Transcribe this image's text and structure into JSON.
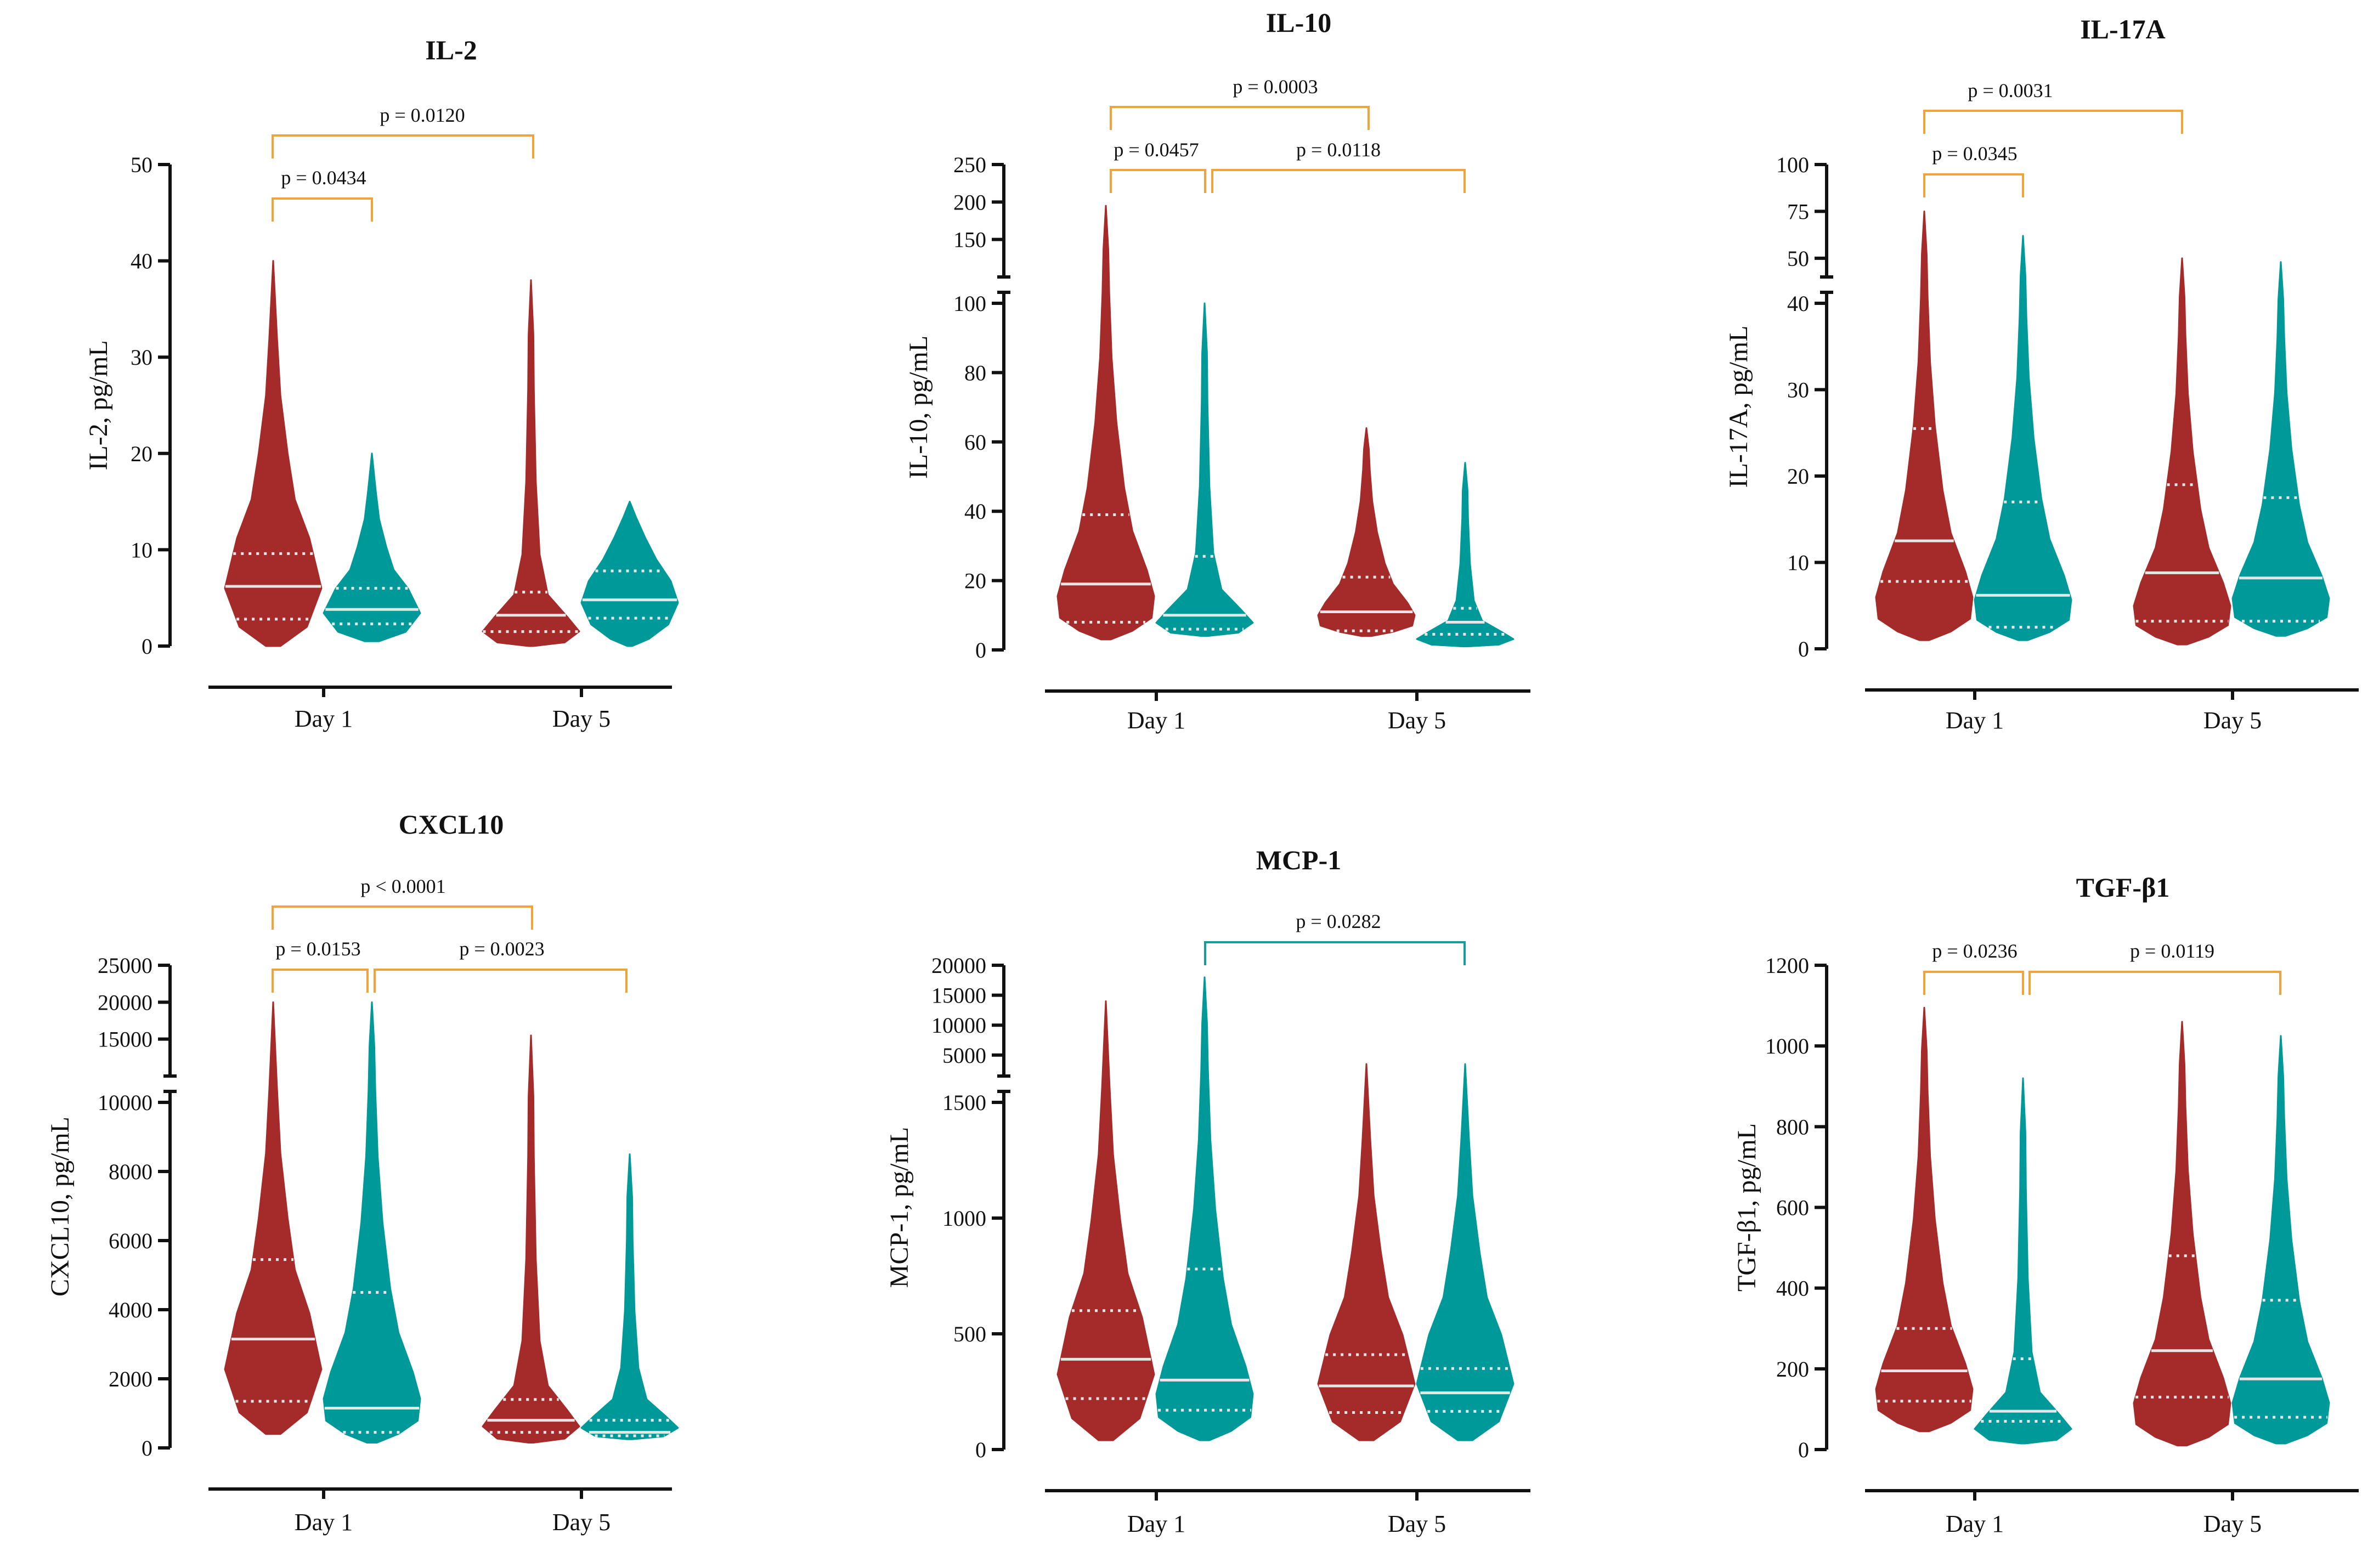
{
  "colors": {
    "red": "#A52A2A",
    "teal": "#009999",
    "bracket_orange": "#F0A33A",
    "bracket_teal": "#159C9C",
    "axis": "#111111",
    "median": "#e6e6e6"
  },
  "chart_data": [
    {
      "type": "violin",
      "title": "IL-2",
      "ylabel": "IL-2, pg/mL",
      "categories": [
        "Day 1",
        "Day 5"
      ],
      "ylim": [
        0,
        50
      ],
      "yticks": [
        "0",
        "10",
        "20",
        "30",
        "40",
        "50"
      ],
      "series": [
        {
          "name": "Day 1 red",
          "min": 0,
          "max": 40,
          "median": 6.2,
          "q1": 2.8,
          "q3": 9.6
        },
        {
          "name": "Day 1 teal",
          "min": 0.5,
          "max": 20,
          "median": 3.8,
          "q1": 2.3,
          "q3": 6.0
        },
        {
          "name": "Day 5 red",
          "min": 0,
          "max": 38,
          "median": 3.2,
          "q1": 1.5,
          "q3": 5.6
        },
        {
          "name": "Day 5 teal",
          "min": 0,
          "max": 15,
          "median": 4.8,
          "q1": 2.9,
          "q3": 7.8
        }
      ],
      "brackets": [
        {
          "label": "p = 0.0120",
          "from": "Day 1 red",
          "to": "Day 5 red",
          "color": "orange"
        },
        {
          "label": "p = 0.0434",
          "from": "Day 1 red",
          "to": "Day 1 teal",
          "color": "orange"
        }
      ]
    },
    {
      "type": "violin",
      "title": "IL-10",
      "ylabel": "IL-10, pg/mL",
      "categories": [
        "Day 1",
        "Day 5"
      ],
      "ylim": [
        0,
        100
      ],
      "upper_segment": [
        100,
        250
      ],
      "yticks": [
        "0",
        "20",
        "40",
        "60",
        "80",
        "100"
      ],
      "upper_yticks": [
        "150",
        "200",
        "250"
      ],
      "series": [
        {
          "name": "Day 1 red",
          "min": 3,
          "max": 195,
          "median": 19,
          "q1": 8,
          "q3": 39
        },
        {
          "name": "Day 1 teal",
          "min": 4,
          "max": 100,
          "median": 10,
          "q1": 6,
          "q3": 27
        },
        {
          "name": "Day 5 red",
          "min": 4,
          "max": 64,
          "median": 11,
          "q1": 5.5,
          "q3": 21
        },
        {
          "name": "Day 5 teal",
          "min": 1,
          "max": 54,
          "median": 8,
          "q1": 4.5,
          "q3": 12
        }
      ],
      "brackets": [
        {
          "label": "p = 0.0003",
          "from": "Day 1 red",
          "to": "Day 5 red",
          "color": "orange"
        },
        {
          "label": "p = 0.0457",
          "from": "Day 1 red",
          "to": "Day 1 teal",
          "color": "orange"
        },
        {
          "label": "p = 0.0118",
          "from": "Day 1 teal",
          "to": "Day 5 teal",
          "color": "orange"
        }
      ]
    },
    {
      "type": "violin",
      "title": "IL-17A",
      "ylabel": "IL-17A, pg/mL",
      "categories": [
        "Day 1",
        "Day 5"
      ],
      "ylim": [
        0,
        40
      ],
      "upper_segment": [
        40,
        100
      ],
      "yticks": [
        "0",
        "10",
        "20",
        "30",
        "40"
      ],
      "upper_yticks": [
        "50",
        "75",
        "100"
      ],
      "series": [
        {
          "name": "Day 1 red",
          "min": 1,
          "max": 75,
          "median": 12.5,
          "q1": 7.8,
          "q3": 25.5
        },
        {
          "name": "Day 1 teal",
          "min": 1,
          "max": 62,
          "median": 6.2,
          "q1": 2.5,
          "q3": 17
        },
        {
          "name": "Day 5 red",
          "min": 0.5,
          "max": 50,
          "median": 8.8,
          "q1": 3.2,
          "q3": 19
        },
        {
          "name": "Day 5 teal",
          "min": 1.5,
          "max": 48,
          "median": 8.2,
          "q1": 3.2,
          "q3": 17.5
        }
      ],
      "brackets": [
        {
          "label": "p = 0.0031",
          "from": "Day 1 red",
          "to": "Day 5 red",
          "color": "orange"
        },
        {
          "label": "p = 0.0345",
          "from": "Day 1 red",
          "to": "Day 1 teal",
          "color": "orange"
        }
      ]
    },
    {
      "type": "violin",
      "title": "CXCL10",
      "ylabel": "CXCL10, pg/mL",
      "categories": [
        "Day 1",
        "Day 5"
      ],
      "ylim": [
        0,
        10000
      ],
      "upper_segment": [
        10000,
        25000
      ],
      "yticks": [
        "0",
        "2000",
        "4000",
        "6000",
        "8000",
        "10000"
      ],
      "upper_yticks": [
        "15000",
        "20000",
        "25000"
      ],
      "series": [
        {
          "name": "Day 1 red",
          "min": 400,
          "max": 20000,
          "median": 3150,
          "q1": 1350,
          "q3": 5450
        },
        {
          "name": "Day 1 teal",
          "min": 150,
          "max": 20000,
          "median": 1150,
          "q1": 450,
          "q3": 4500
        },
        {
          "name": "Day 5 red",
          "min": 150,
          "max": 15500,
          "median": 800,
          "q1": 450,
          "q3": 1400
        },
        {
          "name": "Day 5 teal",
          "min": 250,
          "max": 8500,
          "median": 450,
          "q1": 350,
          "q3": 800
        }
      ],
      "brackets": [
        {
          "label": "p < 0.0001",
          "from": "Day 1 red",
          "to": "Day 5 red",
          "color": "orange"
        },
        {
          "label": "p = 0.0153",
          "from": "Day 1 red",
          "to": "Day 1 teal",
          "color": "orange"
        },
        {
          "label": "p = 0.0023",
          "from": "Day 1 teal",
          "to": "Day 5 teal",
          "color": "orange"
        }
      ]
    },
    {
      "type": "violin",
      "title": "MCP-1",
      "ylabel": "MCP-1, pg/mL",
      "categories": [
        "Day 1",
        "Day 5"
      ],
      "ylim": [
        0,
        1500
      ],
      "upper_segment": [
        1500,
        20000
      ],
      "yticks": [
        "0",
        "500",
        "1000",
        "1500"
      ],
      "upper_yticks": [
        "5000",
        "10000",
        "15000",
        "20000"
      ],
      "series": [
        {
          "name": "Day 1 red",
          "min": 40,
          "max": 14000,
          "median": 390,
          "q1": 220,
          "q3": 600
        },
        {
          "name": "Day 1 teal",
          "min": 40,
          "max": 18000,
          "median": 300,
          "q1": 170,
          "q3": 780
        },
        {
          "name": "Day 5 red",
          "min": 40,
          "max": 3500,
          "median": 275,
          "q1": 160,
          "q3": 410
        },
        {
          "name": "Day 5 teal",
          "min": 40,
          "max": 3500,
          "median": 245,
          "q1": 165,
          "q3": 350
        }
      ],
      "brackets": [
        {
          "label": "p = 0.0282",
          "from": "Day 1 teal",
          "to": "Day 5 teal",
          "color": "teal"
        }
      ]
    },
    {
      "type": "violin",
      "title": "TGF-β1",
      "ylabel": "TGF-β1, pg/mL",
      "categories": [
        "Day 1",
        "Day 5"
      ],
      "ylim": [
        0,
        1200
      ],
      "yticks": [
        "0",
        "200",
        "400",
        "600",
        "800",
        "1000",
        "1200"
      ],
      "series": [
        {
          "name": "Day 1 red",
          "min": 45,
          "max": 1095,
          "median": 195,
          "q1": 120,
          "q3": 300
        },
        {
          "name": "Day 1 teal",
          "min": 15,
          "max": 920,
          "median": 95,
          "q1": 70,
          "q3": 225
        },
        {
          "name": "Day 5 red",
          "min": 10,
          "max": 1060,
          "median": 245,
          "q1": 130,
          "q3": 480
        },
        {
          "name": "Day 5 teal",
          "min": 15,
          "max": 1025,
          "median": 175,
          "q1": 80,
          "q3": 370
        }
      ],
      "brackets": [
        {
          "label": "p = 0.0236",
          "from": "Day 1 red",
          "to": "Day 1 teal",
          "color": "orange"
        },
        {
          "label": "p = 0.0119",
          "from": "Day 1 teal",
          "to": "Day 5 teal",
          "color": "orange"
        }
      ]
    }
  ]
}
